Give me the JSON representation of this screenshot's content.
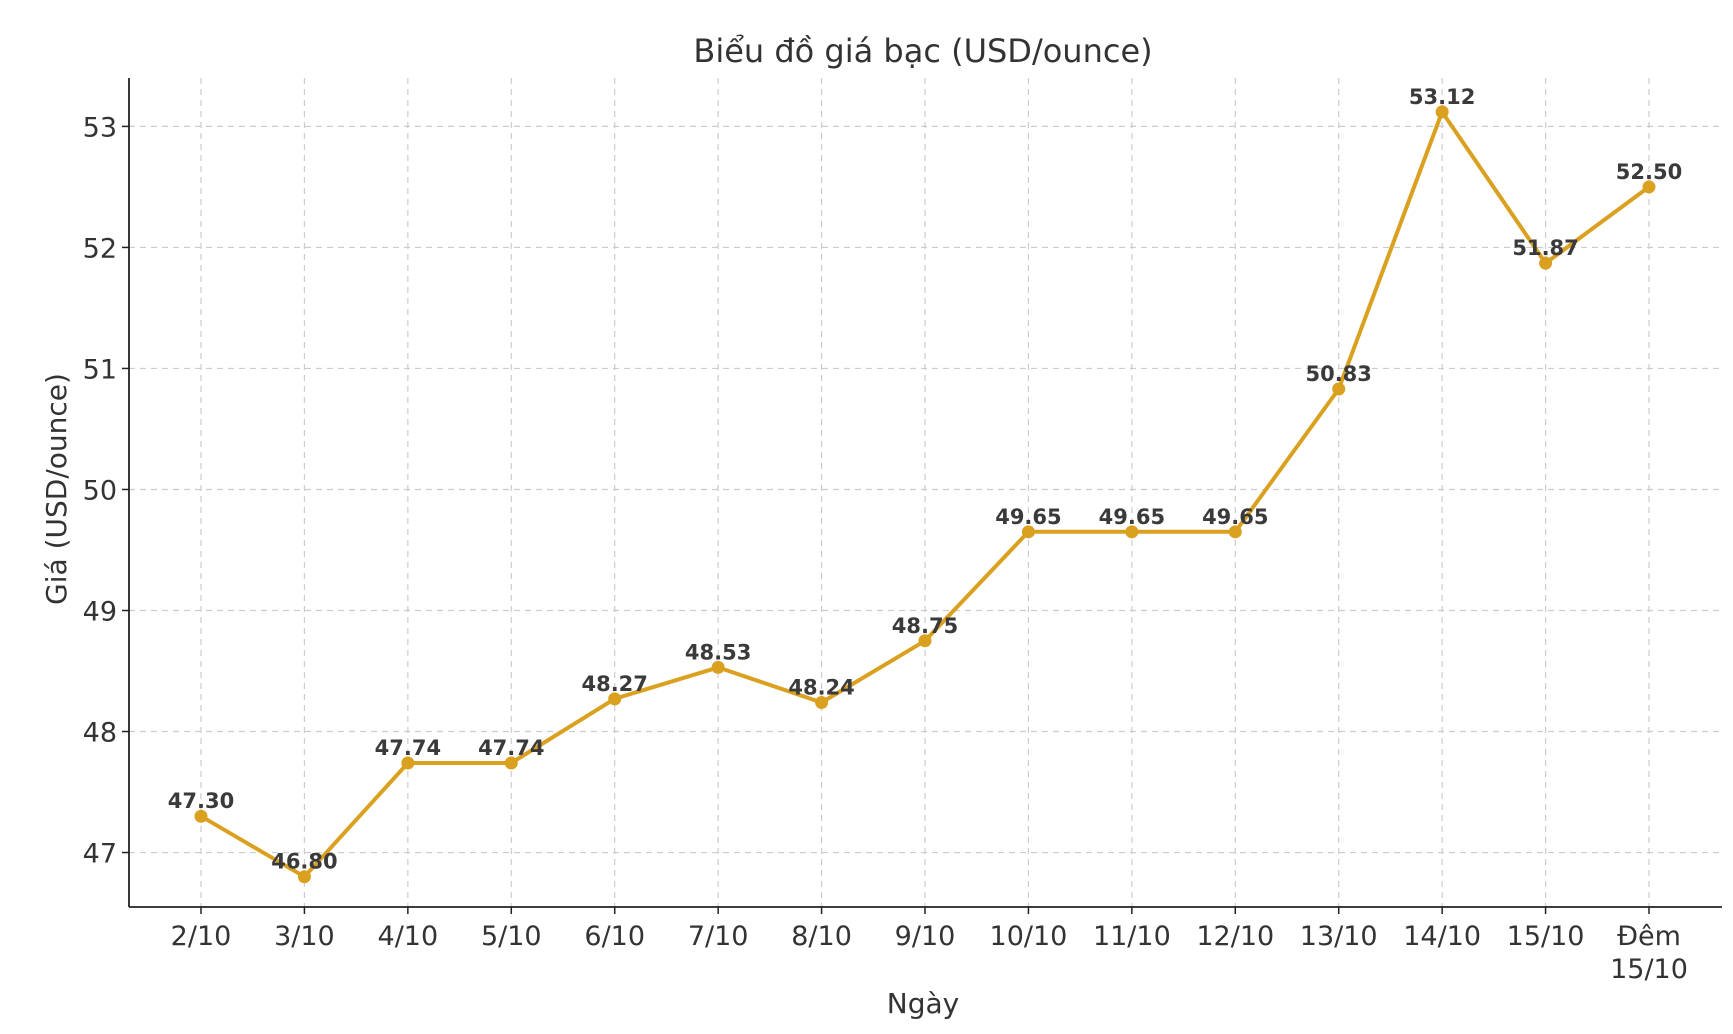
{
  "chart_data": {
    "type": "line",
    "title": "Biểu đồ giá bạc (USD/ounce)",
    "xlabel": "Ngày",
    "ylabel": "Giá (USD/ounce)",
    "categories": [
      "2/10",
      "3/10",
      "4/10",
      "5/10",
      "6/10",
      "7/10",
      "8/10",
      "9/10",
      "10/10",
      "11/10",
      "12/10",
      "13/10",
      "14/10",
      "15/10",
      "Đêm\n15/10"
    ],
    "series": [
      {
        "values": [
          47.3,
          46.8,
          47.74,
          47.74,
          48.27,
          48.53,
          48.24,
          48.75,
          49.65,
          49.65,
          49.65,
          50.83,
          53.12,
          51.87,
          52.5
        ],
        "labels": [
          "47.30",
          "46.80",
          "47.74",
          "47.74",
          "48.27",
          "48.53",
          "48.24",
          "48.75",
          "49.65",
          "49.65",
          "49.65",
          "50.83",
          "53.12",
          "51.87",
          "52.50"
        ],
        "color": "#DAA020"
      }
    ],
    "yticks": [
      47,
      48,
      49,
      50,
      51,
      52,
      53
    ],
    "ylim": [
      46.55,
      53.4
    ],
    "grid": true,
    "legend": "none"
  }
}
